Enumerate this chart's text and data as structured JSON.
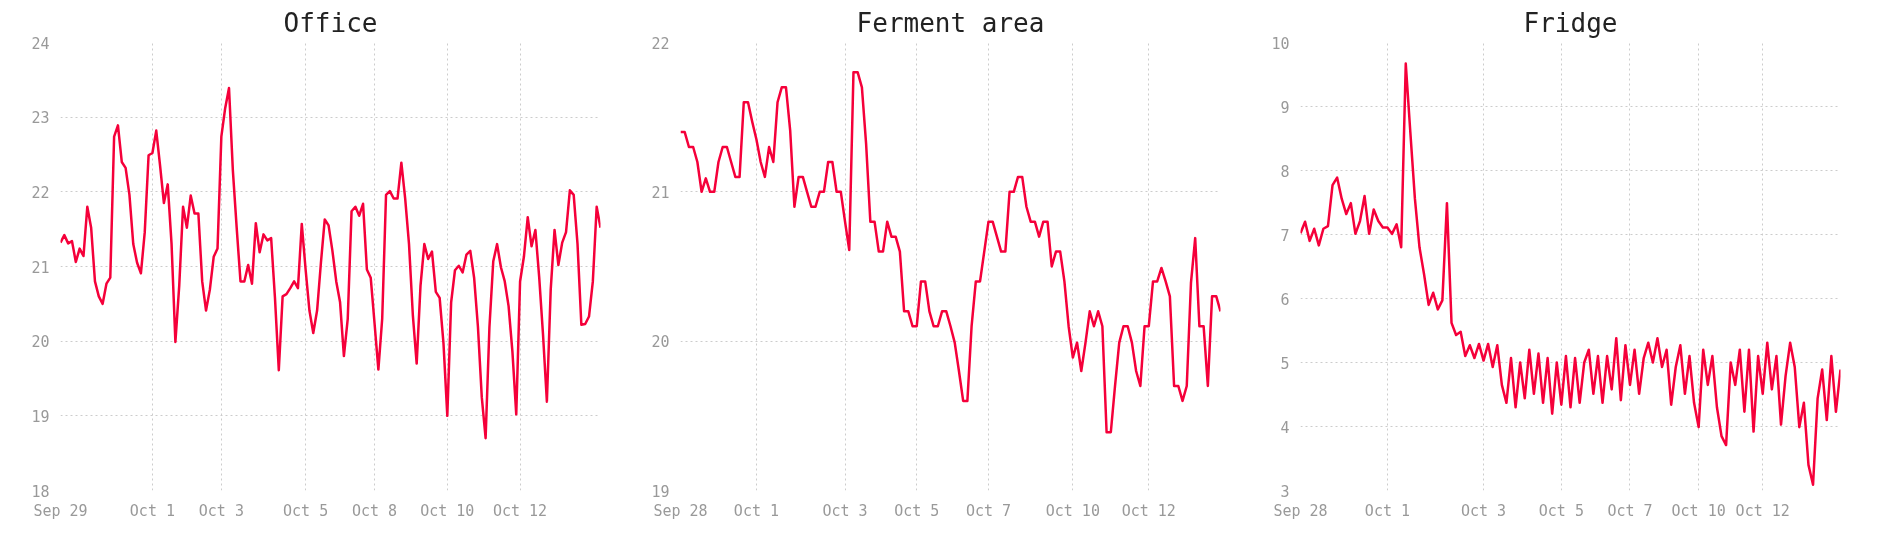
{
  "chart_data": [
    {
      "type": "line",
      "title": "Office",
      "ylim": [
        18,
        24
      ],
      "yticks": [
        18,
        19,
        20,
        21,
        22,
        23,
        24
      ],
      "grid": true,
      "line_style": "solid",
      "categories": [
        "Sep 29",
        null,
        null,
        null,
        null,
        null,
        null,
        null,
        null,
        null,
        null,
        null,
        null,
        null,
        null,
        null,
        null,
        null,
        null,
        null,
        null,
        null,
        null,
        null,
        "Oct 1",
        null,
        null,
        null,
        null,
        null,
        null,
        null,
        null,
        null,
        null,
        null,
        null,
        null,
        null,
        null,
        null,
        null,
        "Oct 3",
        null,
        null,
        null,
        null,
        null,
        null,
        null,
        null,
        null,
        null,
        null,
        null,
        null,
        null,
        null,
        null,
        null,
        null,
        null,
        null,
        null,
        "Oct 5",
        null,
        null,
        null,
        null,
        null,
        null,
        null,
        null,
        null,
        null,
        null,
        null,
        null,
        null,
        null,
        null,
        null,
        "Oct 8",
        null,
        null,
        null,
        null,
        null,
        null,
        null,
        null,
        null,
        null,
        null,
        null,
        null,
        null,
        null,
        null,
        null,
        null,
        "Oct 10",
        null,
        null,
        null,
        null,
        null,
        null,
        null,
        null,
        null,
        null,
        null,
        null,
        null,
        null,
        null,
        null,
        null,
        null,
        "Oct 12",
        null,
        null,
        null,
        null,
        null,
        null,
        null,
        null,
        null,
        null,
        null,
        null,
        null,
        null,
        null,
        null,
        null,
        null,
        null,
        null,
        null
      ],
      "series": [
        {
          "color": "#f5003a",
          "values": [
            21.32,
            21.42,
            21.31,
            21.34,
            21.06,
            21.24,
            21.14,
            21.8,
            21.52,
            20.8,
            20.6,
            20.5,
            20.77,
            20.85,
            22.74,
            22.89,
            22.4,
            22.32,
            21.96,
            21.3,
            21.05,
            20.91,
            21.46,
            22.49,
            22.52,
            22.82,
            22.35,
            21.85,
            22.1,
            21.3,
            19.99,
            20.74,
            21.8,
            21.52,
            21.95,
            21.71,
            21.71,
            20.8,
            20.41,
            20.69,
            21.13,
            21.24,
            22.74,
            23.12,
            23.39,
            22.29,
            21.52,
            20.8,
            20.8,
            21.02,
            20.77,
            21.58,
            21.19,
            21.43,
            21.35,
            21.38,
            20.58,
            19.61,
            20.6,
            20.63,
            20.71,
            20.8,
            20.71,
            21.57,
            20.96,
            20.41,
            20.11,
            20.41,
            21.05,
            21.63,
            21.55,
            21.21,
            20.8,
            20.52,
            19.8,
            20.3,
            21.74,
            21.8,
            21.68,
            21.84,
            20.96,
            20.85,
            20.24,
            19.62,
            20.3,
            21.96,
            22.01,
            21.91,
            21.91,
            22.39,
            21.91,
            21.3,
            20.35,
            19.7,
            20.74,
            21.3,
            21.1,
            21.2,
            20.66,
            20.58,
            19.97,
            19.0,
            20.52,
            20.95,
            21.01,
            20.92,
            21.16,
            21.21,
            20.85,
            20.19,
            19.25,
            18.7,
            20.19,
            21.07,
            21.3,
            20.99,
            20.8,
            20.47,
            19.86,
            19.02,
            20.8,
            21.13,
            21.66,
            21.27,
            21.49,
            20.85,
            20.08,
            19.19,
            20.69,
            21.49,
            21.02,
            21.32,
            21.46,
            22.02,
            21.96,
            21.3,
            20.22,
            20.23,
            20.33,
            20.8,
            21.8,
            21.52
          ]
        }
      ]
    },
    {
      "type": "line",
      "title": "Ferment area",
      "ylim": [
        19,
        22
      ],
      "yticks": [
        19,
        20,
        21,
        22
      ],
      "grid": true,
      "line_style": "solid",
      "categories": [
        "Sep 28",
        null,
        null,
        null,
        null,
        null,
        null,
        null,
        null,
        null,
        null,
        null,
        null,
        null,
        null,
        null,
        null,
        null,
        "Oct 1",
        null,
        null,
        null,
        null,
        null,
        null,
        null,
        null,
        null,
        null,
        null,
        null,
        null,
        null,
        null,
        null,
        null,
        null,
        null,
        null,
        "Oct 3",
        null,
        null,
        null,
        null,
        null,
        null,
        null,
        null,
        null,
        null,
        null,
        null,
        null,
        null,
        null,
        null,
        "Oct 5",
        null,
        null,
        null,
        null,
        null,
        null,
        null,
        null,
        null,
        null,
        null,
        null,
        null,
        null,
        null,
        null,
        "Oct 7",
        null,
        null,
        null,
        null,
        null,
        null,
        null,
        null,
        null,
        null,
        null,
        null,
        null,
        null,
        null,
        null,
        null,
        null,
        null,
        "Oct 10",
        null,
        null,
        null,
        null,
        null,
        null,
        null,
        null,
        null,
        null,
        null,
        null,
        null,
        null,
        null,
        null,
        null,
        "Oct 12",
        null,
        null,
        null,
        null,
        null,
        null,
        null,
        null,
        null,
        null,
        null,
        null,
        null,
        null,
        null,
        null,
        null
      ],
      "series": [
        {
          "color": "#f5003a",
          "values": [
            21.4,
            21.4,
            21.3,
            21.3,
            21.2,
            21.0,
            21.09,
            21.0,
            21.0,
            21.2,
            21.3,
            21.3,
            21.2,
            21.1,
            21.1,
            21.6,
            21.6,
            21.47,
            21.35,
            21.2,
            21.1,
            21.3,
            21.2,
            21.6,
            21.7,
            21.7,
            21.41,
            20.9,
            21.1,
            21.1,
            21.0,
            20.9,
            20.9,
            21.0,
            21.0,
            21.2,
            21.2,
            21.0,
            21.0,
            20.8,
            20.61,
            21.8,
            21.8,
            21.7,
            21.32,
            20.8,
            20.8,
            20.6,
            20.6,
            20.8,
            20.7,
            20.7,
            20.6,
            20.2,
            20.2,
            20.1,
            20.1,
            20.4,
            20.4,
            20.2,
            20.1,
            20.1,
            20.2,
            20.2,
            20.1,
            19.99,
            19.8,
            19.6,
            19.6,
            20.1,
            20.4,
            20.4,
            20.6,
            20.8,
            20.8,
            20.7,
            20.6,
            20.6,
            21.0,
            21.0,
            21.1,
            21.1,
            20.9,
            20.8,
            20.8,
            20.7,
            20.8,
            20.8,
            20.5,
            20.6,
            20.6,
            20.4,
            20.1,
            19.89,
            19.99,
            19.8,
            19.99,
            20.2,
            20.1,
            20.2,
            20.1,
            19.39,
            19.39,
            19.7,
            19.99,
            20.1,
            20.1,
            19.99,
            19.8,
            19.7,
            20.1,
            20.1,
            20.4,
            20.4,
            20.49,
            20.4,
            20.3,
            19.7,
            19.7,
            19.6,
            19.7,
            20.39,
            20.69,
            20.1,
            20.1,
            19.7,
            20.3,
            20.3,
            20.2
          ]
        }
      ]
    },
    {
      "type": "line",
      "title": "Fridge",
      "ylim": [
        3,
        10
      ],
      "yticks": [
        3,
        4,
        5,
        6,
        7,
        8,
        9,
        10
      ],
      "grid": true,
      "line_style": "solid",
      "categories": [
        "Sep 28",
        null,
        null,
        null,
        null,
        null,
        null,
        null,
        null,
        null,
        null,
        null,
        null,
        null,
        null,
        null,
        null,
        null,
        null,
        "Oct 1",
        null,
        null,
        null,
        null,
        null,
        null,
        null,
        null,
        null,
        null,
        null,
        null,
        null,
        null,
        null,
        null,
        null,
        null,
        null,
        null,
        "Oct 3",
        null,
        null,
        null,
        null,
        null,
        null,
        null,
        null,
        null,
        null,
        null,
        null,
        null,
        null,
        null,
        null,
        "Oct 5",
        null,
        null,
        null,
        null,
        null,
        null,
        null,
        null,
        null,
        null,
        null,
        null,
        null,
        null,
        "Oct 7",
        null,
        null,
        null,
        null,
        null,
        null,
        null,
        null,
        null,
        null,
        null,
        null,
        null,
        null,
        "Oct 10",
        null,
        null,
        null,
        null,
        null,
        null,
        null,
        null,
        null,
        null,
        null,
        null,
        null,
        "Oct 12",
        null,
        null,
        null,
        null,
        null,
        null,
        null,
        null,
        null,
        null,
        null,
        null,
        null,
        null,
        null,
        null,
        null
      ],
      "series": [
        {
          "color": "#f5003a",
          "values": [
            7.02,
            7.2,
            6.9,
            7.09,
            6.83,
            7.09,
            7.13,
            7.77,
            7.89,
            7.56,
            7.32,
            7.49,
            7.01,
            7.21,
            7.6,
            7.01,
            7.39,
            7.21,
            7.11,
            7.11,
            7.01,
            7.16,
            6.8,
            9.67,
            8.6,
            7.56,
            6.8,
            6.38,
            5.9,
            6.09,
            5.83,
            5.97,
            7.49,
            5.62,
            5.43,
            5.48,
            5.1,
            5.27,
            5.07,
            5.29,
            5.03,
            5.29,
            4.93,
            5.27,
            4.65,
            4.37,
            5.07,
            4.3,
            5.0,
            4.44,
            5.2,
            4.51,
            5.14,
            4.37,
            5.07,
            4.2,
            5.0,
            4.34,
            5.1,
            4.3,
            5.07,
            4.37,
            5.0,
            5.2,
            4.51,
            5.1,
            4.37,
            5.1,
            4.58,
            5.38,
            4.41,
            5.27,
            4.65,
            5.2,
            4.51,
            5.07,
            5.31,
            5.0,
            5.38,
            4.93,
            5.2,
            4.34,
            4.93,
            5.27,
            4.51,
            5.1,
            4.37,
            3.99,
            5.2,
            4.65,
            5.1,
            4.3,
            3.85,
            3.71,
            5.0,
            4.65,
            5.2,
            4.23,
            5.2,
            3.92,
            5.1,
            4.51,
            5.31,
            4.58,
            5.1,
            4.03,
            4.79,
            5.31,
            4.93,
            3.99,
            4.37,
            3.4,
            3.09,
            4.44,
            4.89,
            4.1,
            5.1,
            4.23,
            4.89
          ]
        }
      ]
    }
  ]
}
